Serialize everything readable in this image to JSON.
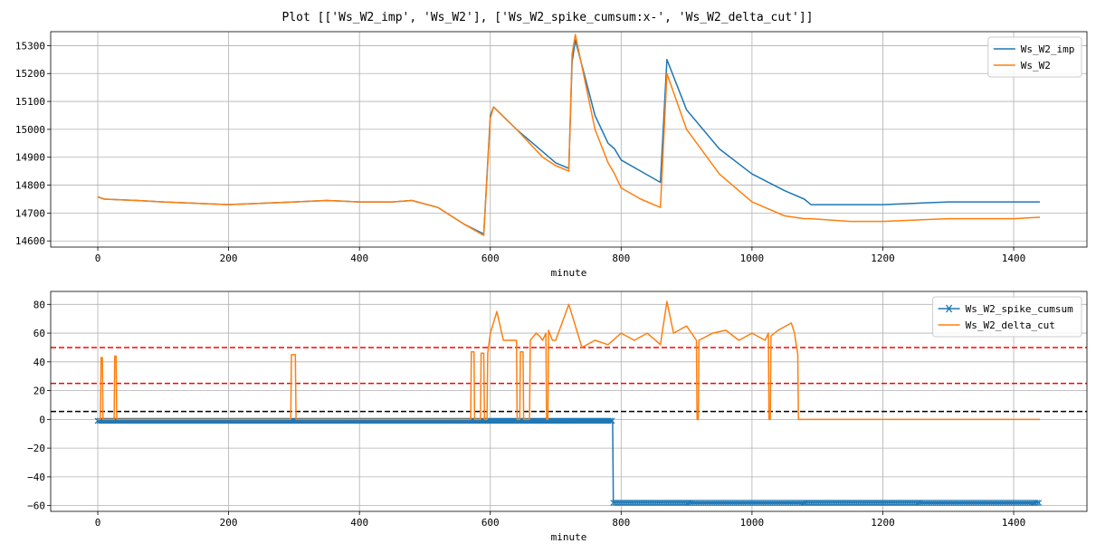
{
  "title": "Plot [['Ws_W2_imp', 'Ws_W2'], ['Ws_W2_spike_cumsum:x-', 'Ws_W2_delta_cut']]",
  "chart_data": [
    {
      "type": "line",
      "xlabel": "minute",
      "ylabel": "",
      "xlim": [
        -72,
        1512
      ],
      "ylim": [
        14578,
        15350
      ],
      "x_ticks": [
        0,
        200,
        400,
        600,
        800,
        1000,
        1200,
        1400
      ],
      "y_ticks": [
        14600,
        14700,
        14800,
        14900,
        15000,
        15100,
        15200,
        15300
      ],
      "grid": true,
      "legend_position": "top-right",
      "hlines": [],
      "series": [
        {
          "name": "Ws_W2_imp",
          "color": "#1f77b4",
          "marker": "none",
          "x": [
            0,
            10,
            60,
            100,
            150,
            200,
            250,
            300,
            350,
            400,
            450,
            480,
            520,
            560,
            590,
            600,
            605,
            640,
            680,
            700,
            720,
            725,
            730,
            760,
            780,
            790,
            800,
            830,
            860,
            870,
            900,
            950,
            1000,
            1050,
            1080,
            1090,
            1150,
            1200,
            1250,
            1300,
            1350,
            1400,
            1440
          ],
          "values": [
            14758,
            14750,
            14745,
            14740,
            14735,
            14730,
            14735,
            14740,
            14745,
            14740,
            14740,
            14745,
            14720,
            14660,
            14625,
            15050,
            15080,
            15000,
            14920,
            14880,
            14860,
            15240,
            15320,
            15050,
            14950,
            14930,
            14890,
            14850,
            14810,
            15250,
            15070,
            14930,
            14840,
            14780,
            14750,
            14730,
            14730,
            14730,
            14735,
            14740,
            14740,
            14740,
            14740
          ]
        },
        {
          "name": "Ws_W2",
          "color": "#ff7f0e",
          "marker": "none",
          "x": [
            0,
            10,
            60,
            100,
            150,
            200,
            250,
            300,
            350,
            400,
            450,
            480,
            520,
            560,
            590,
            600,
            605,
            640,
            680,
            700,
            720,
            725,
            730,
            760,
            780,
            790,
            800,
            830,
            860,
            870,
            900,
            950,
            1000,
            1050,
            1080,
            1090,
            1150,
            1200,
            1250,
            1300,
            1350,
            1400,
            1440
          ],
          "values": [
            14758,
            14750,
            14745,
            14740,
            14735,
            14730,
            14735,
            14740,
            14745,
            14740,
            14740,
            14745,
            14720,
            14660,
            14620,
            15040,
            15080,
            15000,
            14900,
            14870,
            14850,
            15270,
            15340,
            15000,
            14880,
            14840,
            14790,
            14750,
            14720,
            15200,
            15000,
            14840,
            14740,
            14690,
            14680,
            14680,
            14670,
            14670,
            14675,
            14680,
            14680,
            14680,
            14685
          ]
        }
      ]
    },
    {
      "type": "line",
      "xlabel": "minute",
      "ylabel": "",
      "xlim": [
        -72,
        1512
      ],
      "ylim": [
        -64,
        89
      ],
      "x_ticks": [
        0,
        200,
        400,
        600,
        800,
        1000,
        1200,
        1400
      ],
      "y_ticks": [
        -60,
        -40,
        -20,
        0,
        20,
        40,
        60,
        80
      ],
      "grid": true,
      "legend_position": "top-right",
      "hlines": [
        {
          "y": 50,
          "color": "#ff0000",
          "style": "dashed"
        },
        {
          "y": 25,
          "color": "#ff0000",
          "style": "dashed"
        },
        {
          "y": 5.5,
          "color": "#000000",
          "style": "dashed"
        }
      ],
      "series": [
        {
          "name": "Ws_W2_spike_cumsum",
          "color": "#1f77b4",
          "marker": "x",
          "x": [
            0,
            787,
            788,
            1440
          ],
          "values": [
            -1,
            -1,
            -58,
            -58
          ]
        },
        {
          "name": "Ws_W2_delta_cut",
          "color": "#ff7f0e",
          "marker": "none",
          "x": [
            0,
            4,
            5,
            7,
            8,
            25,
            26,
            28,
            29,
            295,
            296,
            302,
            303,
            570,
            571,
            575,
            576,
            585,
            586,
            590,
            591,
            595,
            596,
            600,
            610,
            620,
            640,
            641,
            645,
            646,
            650,
            651,
            660,
            661,
            670,
            675,
            680,
            685,
            686,
            688,
            689,
            695,
            700,
            720,
            740,
            760,
            780,
            800,
            820,
            840,
            860,
            870,
            880,
            900,
            915,
            916,
            918,
            919,
            940,
            960,
            980,
            1000,
            1020,
            1025,
            1026,
            1028,
            1029,
            1040,
            1060,
            1065,
            1070,
            1071,
            1440
          ],
          "values": [
            0,
            0,
            43,
            43,
            0,
            0,
            44,
            44,
            0,
            0,
            45,
            45,
            0,
            0,
            47,
            47,
            0,
            0,
            46,
            46,
            0,
            0,
            46,
            60,
            75,
            55,
            55,
            0,
            0,
            47,
            47,
            0,
            0,
            55,
            60,
            58,
            55,
            60,
            0,
            0,
            62,
            55,
            55,
            80,
            50,
            55,
            52,
            60,
            55,
            60,
            52,
            82,
            60,
            65,
            55,
            0,
            0,
            55,
            60,
            62,
            55,
            60,
            55,
            60,
            0,
            0,
            58,
            62,
            67,
            60,
            45,
            0,
            0
          ]
        }
      ]
    }
  ]
}
